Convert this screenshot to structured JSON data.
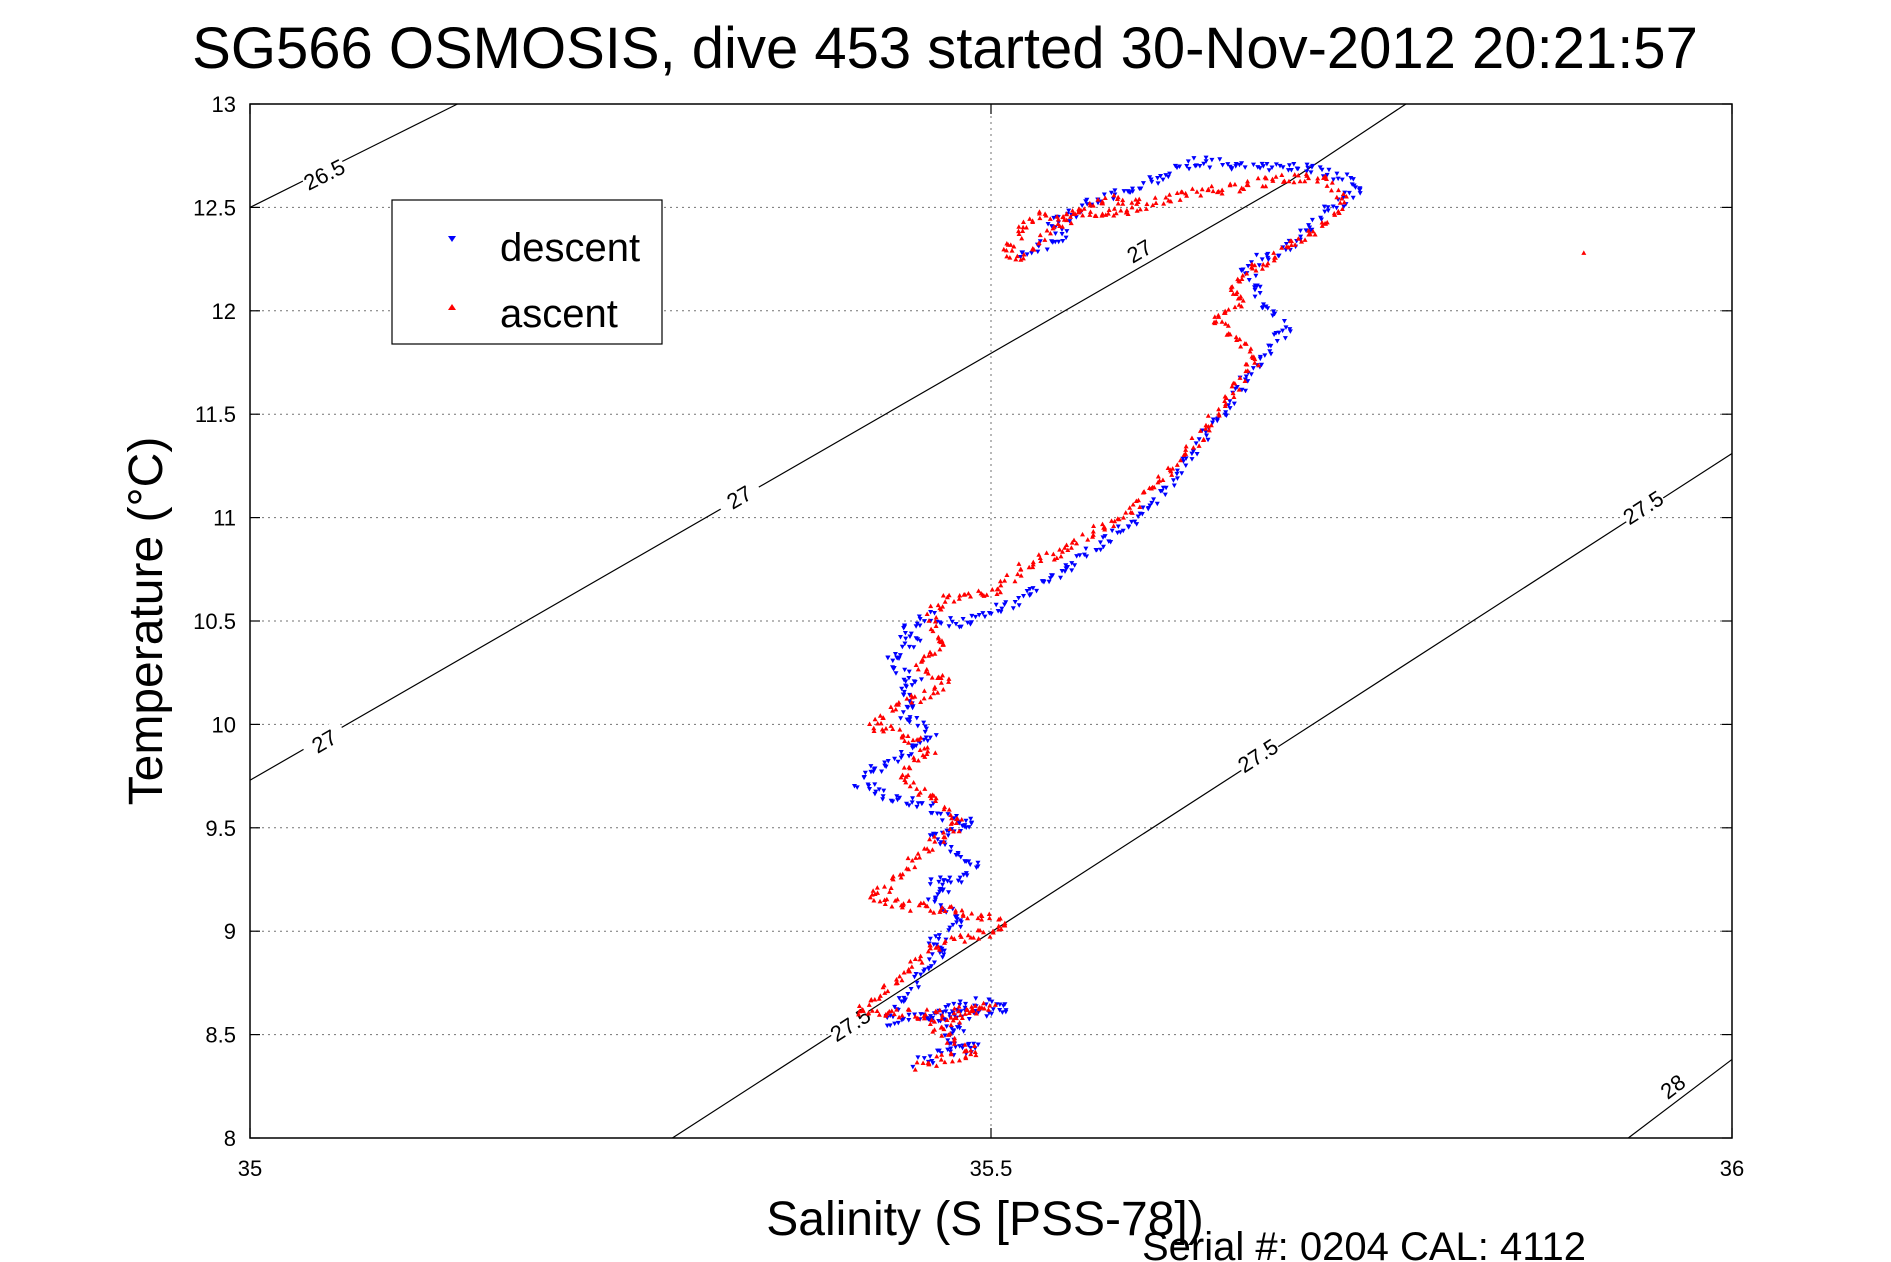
{
  "chart_data": {
    "type": "scatter",
    "title": "SG566 OSMOSIS, dive 453 started 30-Nov-2012 20:21:57",
    "xlabel": "Salinity (S [PSS-78])",
    "ylabel": "Temperature (°C)",
    "xlim": [
      35,
      36
    ],
    "ylim": [
      8,
      13
    ],
    "xticks": [
      "35",
      "35.5",
      "36"
    ],
    "yticks": [
      "8",
      "8.5",
      "9",
      "9.5",
      "10",
      "10.5",
      "11",
      "11.5",
      "12",
      "12.5",
      "13"
    ],
    "grid": true,
    "legend": {
      "placement": "top-left",
      "entries": [
        "descent",
        "ascent"
      ]
    },
    "footer": "Serial #: 0204  CAL: 4112",
    "density_contours": [
      {
        "level": "26.5",
        "points": [
          [
            35.0,
            12.5
          ],
          [
            35.14,
            13.0
          ]
        ],
        "labels": [
          [
            35.05,
            12.66
          ]
        ]
      },
      {
        "level": "27",
        "points": [
          [
            35.0,
            9.73
          ],
          [
            35.7,
            12.62
          ],
          [
            35.78,
            13.0
          ]
        ],
        "labels": [
          [
            35.05,
            9.92
          ],
          [
            35.33,
            11.1
          ],
          [
            35.6,
            12.29
          ]
        ]
      },
      {
        "level": "27.5",
        "points": [
          [
            35.285,
            8.0
          ],
          [
            36.0,
            11.31
          ]
        ],
        "labels": [
          [
            35.405,
            8.55
          ],
          [
            35.68,
            9.85
          ],
          [
            35.94,
            11.05
          ]
        ]
      },
      {
        "level": "28",
        "points": [
          [
            35.93,
            8.0
          ],
          [
            36.0,
            8.38
          ]
        ],
        "labels": [
          [
            35.96,
            8.25
          ]
        ]
      }
    ],
    "series": [
      {
        "name": "descent",
        "color": "#0000ff",
        "marker": "triangle-down",
        "path": [
          [
            35.45,
            8.36
          ],
          [
            35.46,
            8.38
          ],
          [
            35.47,
            8.42
          ],
          [
            35.48,
            8.43
          ],
          [
            35.49,
            8.44
          ],
          [
            35.47,
            8.47
          ],
          [
            35.48,
            8.52
          ],
          [
            35.47,
            8.55
          ],
          [
            35.46,
            8.58
          ],
          [
            35.47,
            8.62
          ],
          [
            35.48,
            8.64
          ],
          [
            35.49,
            8.65
          ],
          [
            35.5,
            8.66
          ],
          [
            35.51,
            8.62
          ],
          [
            35.49,
            8.6
          ],
          [
            35.47,
            8.59
          ],
          [
            35.44,
            8.58
          ],
          [
            35.43,
            8.56
          ],
          [
            35.46,
            8.85
          ],
          [
            35.47,
            8.9
          ],
          [
            35.46,
            8.95
          ],
          [
            35.47,
            9.0
          ],
          [
            35.48,
            9.05
          ],
          [
            35.47,
            9.1
          ],
          [
            35.46,
            9.15
          ],
          [
            35.47,
            9.2
          ],
          [
            35.46,
            9.24
          ],
          [
            35.48,
            9.25
          ],
          [
            35.49,
            9.3
          ],
          [
            35.48,
            9.35
          ],
          [
            35.47,
            9.4
          ],
          [
            35.46,
            9.45
          ],
          [
            35.48,
            9.5
          ],
          [
            35.49,
            9.52
          ],
          [
            35.47,
            9.55
          ],
          [
            35.46,
            9.6
          ],
          [
            35.45,
            9.62
          ],
          [
            35.43,
            9.65
          ],
          [
            35.42,
            9.7
          ],
          [
            35.41,
            9.72
          ],
          [
            35.42,
            9.78
          ],
          [
            35.43,
            9.82
          ],
          [
            35.44,
            9.86
          ],
          [
            35.45,
            9.9
          ],
          [
            35.46,
            9.95
          ],
          [
            35.45,
            10.0
          ],
          [
            35.44,
            10.05
          ],
          [
            35.45,
            10.1
          ],
          [
            35.44,
            10.15
          ],
          [
            35.45,
            10.2
          ],
          [
            35.44,
            10.25
          ],
          [
            35.43,
            10.3
          ],
          [
            35.44,
            10.35
          ],
          [
            35.45,
            10.4
          ],
          [
            35.44,
            10.45
          ],
          [
            35.45,
            10.5
          ],
          [
            35.46,
            10.52
          ],
          [
            35.48,
            10.48
          ],
          [
            35.5,
            10.55
          ],
          [
            35.52,
            10.6
          ],
          [
            35.54,
            10.7
          ],
          [
            35.56,
            10.8
          ],
          [
            35.58,
            10.9
          ],
          [
            35.6,
            11.0
          ],
          [
            35.61,
            11.08
          ],
          [
            35.62,
            11.15
          ],
          [
            35.63,
            11.25
          ],
          [
            35.64,
            11.35
          ],
          [
            35.65,
            11.45
          ],
          [
            35.66,
            11.55
          ],
          [
            35.67,
            11.65
          ],
          [
            35.68,
            11.75
          ],
          [
            35.69,
            11.85
          ],
          [
            35.7,
            11.92
          ],
          [
            35.69,
            11.98
          ],
          [
            35.68,
            12.05
          ],
          [
            35.68,
            12.12
          ],
          [
            35.67,
            12.2
          ],
          [
            35.68,
            12.25
          ],
          [
            35.7,
            12.3
          ],
          [
            35.71,
            12.38
          ],
          [
            35.72,
            12.45
          ],
          [
            35.73,
            12.5
          ],
          [
            35.74,
            12.55
          ],
          [
            35.75,
            12.6
          ],
          [
            35.74,
            12.65
          ],
          [
            35.72,
            12.68
          ],
          [
            35.68,
            12.7
          ],
          [
            35.64,
            12.72
          ],
          [
            35.6,
            12.6
          ],
          [
            35.58,
            12.55
          ],
          [
            35.56,
            12.5
          ],
          [
            35.55,
            12.45
          ],
          [
            35.54,
            12.42
          ],
          [
            35.55,
            12.36
          ],
          [
            35.54,
            12.33
          ],
          [
            35.53,
            12.3
          ],
          [
            35.52,
            12.26
          ]
        ]
      },
      {
        "name": "ascent",
        "color": "#ff0000",
        "marker": "triangle-up",
        "path": [
          [
            35.45,
            8.35
          ],
          [
            35.46,
            8.37
          ],
          [
            35.48,
            8.4
          ],
          [
            35.49,
            8.42
          ],
          [
            35.48,
            8.45
          ],
          [
            35.47,
            8.5
          ],
          [
            35.46,
            8.55
          ],
          [
            35.48,
            8.58
          ],
          [
            35.49,
            8.62
          ],
          [
            35.5,
            8.64
          ],
          [
            35.47,
            8.6
          ],
          [
            35.44,
            8.6
          ],
          [
            35.41,
            8.6
          ],
          [
            35.46,
            8.92
          ],
          [
            35.48,
            8.97
          ],
          [
            35.5,
            9.0
          ],
          [
            35.51,
            9.05
          ],
          [
            35.49,
            9.08
          ],
          [
            35.47,
            9.1
          ],
          [
            35.45,
            9.12
          ],
          [
            35.43,
            9.14
          ],
          [
            35.42,
            9.18
          ],
          [
            35.43,
            9.22
          ],
          [
            35.44,
            9.28
          ],
          [
            35.45,
            9.35
          ],
          [
            35.46,
            9.42
          ],
          [
            35.47,
            9.48
          ],
          [
            35.48,
            9.52
          ],
          [
            35.47,
            9.58
          ],
          [
            35.46,
            9.65
          ],
          [
            35.45,
            9.7
          ],
          [
            35.44,
            9.75
          ],
          [
            35.45,
            9.82
          ],
          [
            35.46,
            9.88
          ],
          [
            35.45,
            9.92
          ],
          [
            35.44,
            9.96
          ],
          [
            35.43,
            9.98
          ],
          [
            35.42,
            9.99
          ],
          [
            35.43,
            10.05
          ],
          [
            35.44,
            10.1
          ],
          [
            35.46,
            10.15
          ],
          [
            35.47,
            10.2
          ],
          [
            35.46,
            10.25
          ],
          [
            35.45,
            10.3
          ],
          [
            35.46,
            10.35
          ],
          [
            35.47,
            10.4
          ],
          [
            35.46,
            10.45
          ],
          [
            35.46,
            10.5
          ],
          [
            35.46,
            10.55
          ],
          [
            35.47,
            10.6
          ],
          [
            35.48,
            10.62
          ],
          [
            35.5,
            10.63
          ],
          [
            35.52,
            10.75
          ],
          [
            35.55,
            10.85
          ],
          [
            35.57,
            10.93
          ],
          [
            35.59,
            11.0
          ],
          [
            35.6,
            11.1
          ],
          [
            35.61,
            11.15
          ],
          [
            35.62,
            11.22
          ],
          [
            35.63,
            11.3
          ],
          [
            35.64,
            11.38
          ],
          [
            35.65,
            11.48
          ],
          [
            35.66,
            11.58
          ],
          [
            35.67,
            11.68
          ],
          [
            35.68,
            11.78
          ],
          [
            35.67,
            11.85
          ],
          [
            35.66,
            11.9
          ],
          [
            35.65,
            11.95
          ],
          [
            35.66,
            12.0
          ],
          [
            35.67,
            12.05
          ],
          [
            35.66,
            12.12
          ],
          [
            35.67,
            12.18
          ],
          [
            35.69,
            12.25
          ],
          [
            35.71,
            12.35
          ],
          [
            35.73,
            12.45
          ],
          [
            35.74,
            12.52
          ],
          [
            35.73,
            12.6
          ],
          [
            35.72,
            12.65
          ],
          [
            35.68,
            12.62
          ],
          [
            35.65,
            12.58
          ],
          [
            35.62,
            12.55
          ],
          [
            35.6,
            12.5
          ],
          [
            35.58,
            12.48
          ],
          [
            35.55,
            12.47
          ],
          [
            35.53,
            12.45
          ],
          [
            35.52,
            12.4
          ],
          [
            35.52,
            12.35
          ],
          [
            35.51,
            12.3
          ],
          [
            35.52,
            12.25
          ],
          [
            35.56,
            12.5
          ],
          [
            35.58,
            12.54
          ],
          [
            35.6,
            12.54
          ],
          [
            35.9,
            12.28
          ]
        ]
      }
    ]
  }
}
